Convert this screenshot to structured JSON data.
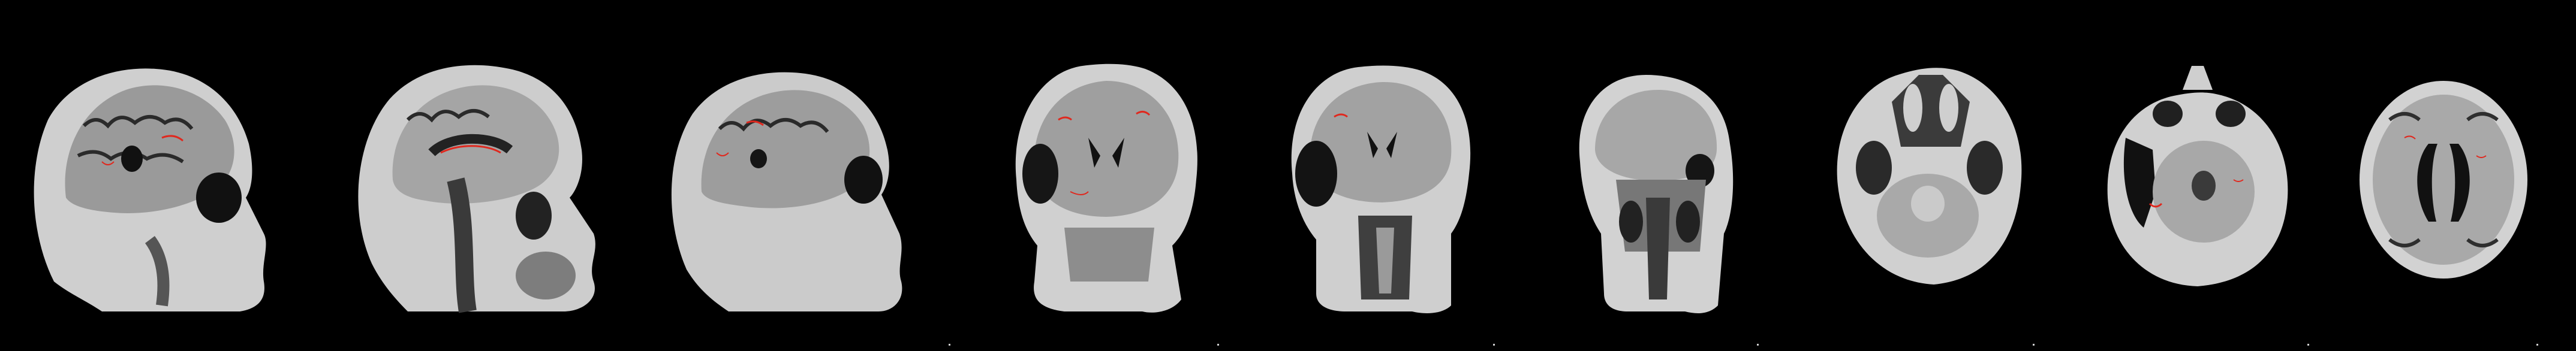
{
  "viewer": {
    "background_color": "#000000",
    "annotation_color": "#e0281e",
    "tissue_color": "#d6d6d6"
  },
  "panels": [
    {
      "view": "sagittal",
      "icon": "mri-slice-sagittal"
    },
    {
      "view": "sagittal",
      "icon": "mri-slice-sagittal"
    },
    {
      "view": "sagittal",
      "icon": "mri-slice-sagittal"
    },
    {
      "view": "coronal",
      "icon": "mri-slice-coronal"
    },
    {
      "view": "coronal",
      "icon": "mri-slice-coronal"
    },
    {
      "view": "coronal",
      "icon": "mri-slice-coronal"
    },
    {
      "view": "axial",
      "icon": "mri-slice-axial"
    },
    {
      "view": "axial",
      "icon": "mri-slice-axial"
    },
    {
      "view": "axial",
      "icon": "mri-slice-axial"
    }
  ]
}
